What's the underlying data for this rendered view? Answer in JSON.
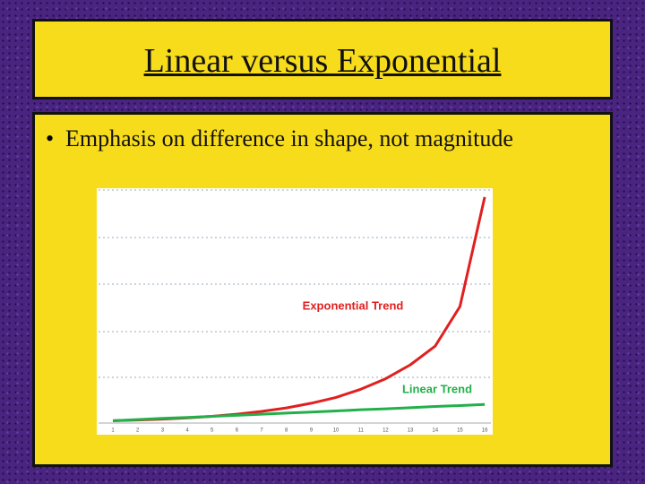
{
  "slide": {
    "title": "Linear versus Exponential",
    "bullet": "Emphasis on difference in shape, not magnitude"
  },
  "chart_data": {
    "type": "line",
    "x": [
      1,
      2,
      3,
      4,
      5,
      6,
      7,
      8,
      9,
      10,
      11,
      12,
      13,
      14,
      15,
      16
    ],
    "xlim": [
      0.42,
      16.25
    ],
    "ylim": [
      0,
      100
    ],
    "series": [
      {
        "name": "Exponential Trend",
        "color": "#e02020",
        "values": [
          1,
          1.3,
          1.7,
          2.2,
          2.9,
          3.8,
          5,
          6.5,
          8.5,
          11,
          14.5,
          19,
          25,
          33,
          50,
          97
        ]
      },
      {
        "name": "Linear Trend",
        "color": "#22b04a",
        "values": [
          1,
          1.5,
          2,
          2.4,
          2.9,
          3.3,
          3.8,
          4.3,
          4.7,
          5.2,
          5.7,
          6.1,
          6.6,
          7.1,
          7.5,
          8
        ]
      }
    ]
  }
}
